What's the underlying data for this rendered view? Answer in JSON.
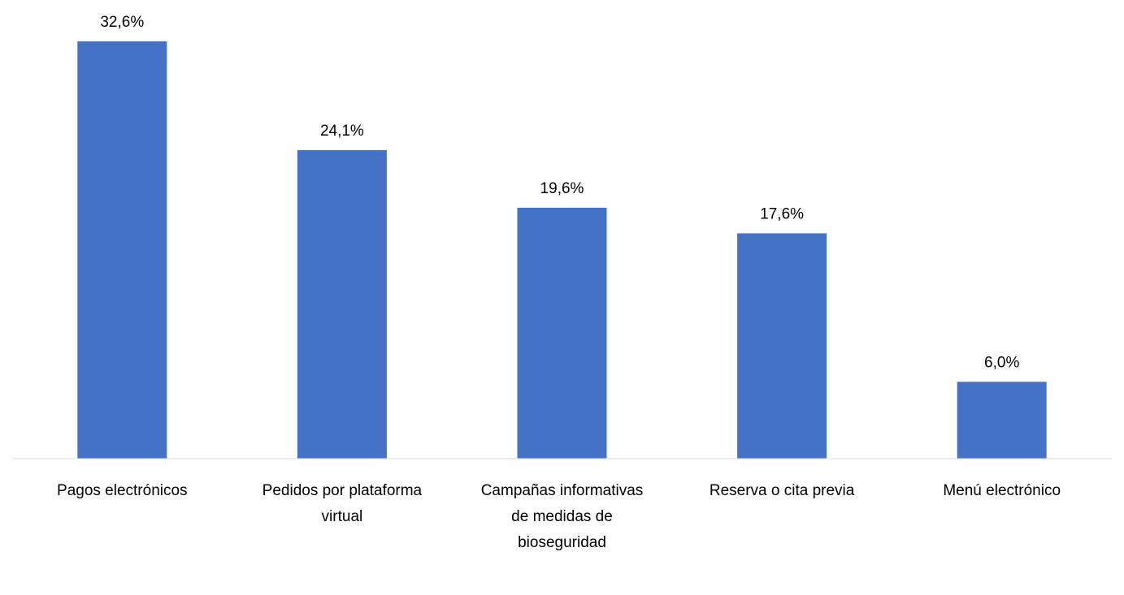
{
  "chart_data": {
    "type": "bar",
    "categories": [
      "Pagos electrónicos",
      "Pedidos por plataforma virtual",
      "Campañas informativas de medidas de bioseguridad",
      "Reserva o cita previa",
      "Menú electrónico"
    ],
    "values": [
      32.6,
      24.1,
      19.6,
      17.6,
      6.0
    ],
    "value_labels": [
      "32,6%",
      "24,1%",
      "19,6%",
      "17,6%",
      "6,0%"
    ],
    "color": "#4472c4",
    "ylim": [
      0,
      35
    ]
  }
}
